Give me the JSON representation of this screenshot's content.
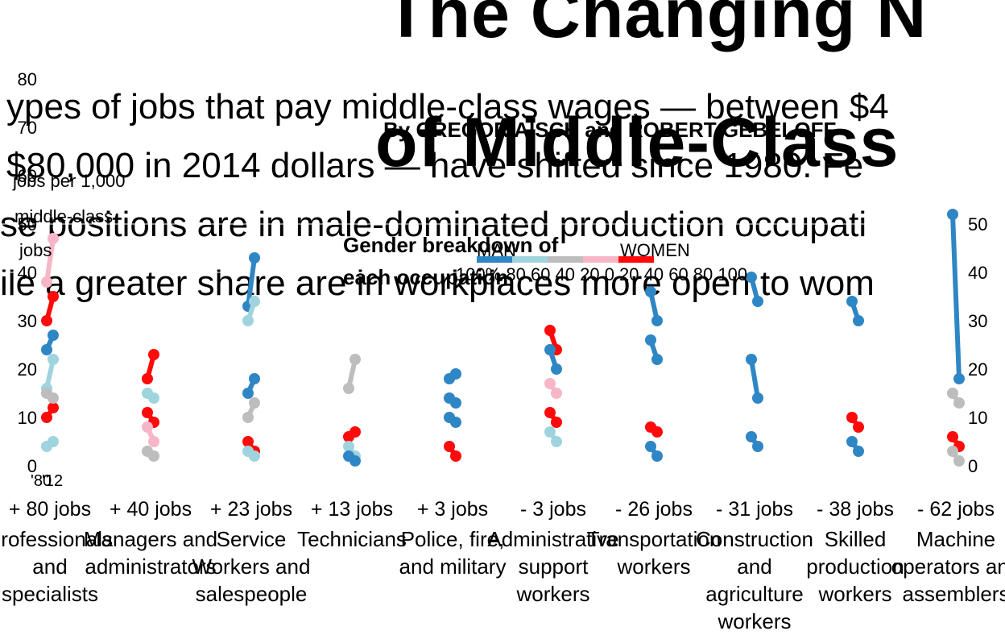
{
  "title": {
    "line1": "The Changing N",
    "line2": "of Middle-Class"
  },
  "subtitle": {
    "line1": "ypes of jobs that pay middle-class wages — between $4",
    "line2": "$80,000 in 2014 dollars — have shifted since 1980. Fe",
    "line3": "se positions are in male-dominated production occupati",
    "line4": "ile a greater share are in workplaces more open to wom"
  },
  "byline": "By GREGOR AISCH and ROBERT GEBELOFF",
  "legend": {
    "title_line1": "Gender breakdown of",
    "title_line2": "each occupation",
    "man": "MAN",
    "women": "WOMEN",
    "scale": "100% 80 60 40 20 0 20 40 60 80 100",
    "colors": [
      "#2f86c4",
      "#9fd4de",
      "#bdbdbd",
      "#f7b6c7",
      "#ff0a0a"
    ]
  },
  "axis": {
    "ylabel_line1": "jobs per 1,000",
    "ylabel_line2": "middle-class",
    "ylabel_line3": "jobs",
    "left_ticks": [
      "0",
      "10",
      "20",
      "30",
      "40",
      "50",
      "60",
      "70",
      "80"
    ],
    "right_ticks": [
      "0",
      "10",
      "20",
      "30",
      "40",
      "50"
    ],
    "year_start": "'80",
    "year_end": "'12"
  },
  "chart_data": {
    "type": "line",
    "title": "The Changing N of Middle-Class",
    "ylabel": "jobs per 1,000 middle-class jobs",
    "x": [
      "'80",
      "'12"
    ],
    "ylim": [
      0,
      60
    ],
    "categories": [
      "Professionals and specialists",
      "Managers and administrators",
      "Service Workers and salespeople",
      "Technicians",
      "Police, fire, and military",
      "Administrative support workers",
      "Transportation workers",
      "Construction and agriculture workers",
      "Skilled production workers",
      "Machine operators and assemblers"
    ],
    "changes": [
      "+ 80 jobs",
      "+ 40 jobs",
      "+ 23 jobs",
      "+ 13 jobs",
      "+ 3 jobs",
      "- 3 jobs",
      "- 26 jobs",
      "- 31 jobs",
      "- 38 jobs",
      "- 62 jobs"
    ],
    "series": [
      {
        "values": [
          38,
          47
        ],
        "color": "#f7b6c7"
      },
      {
        "values": [
          30,
          35
        ],
        "color": "#ff0a0a"
      },
      {
        "values": [
          24,
          27
        ],
        "color": "#2f86c4"
      },
      {
        "values": [
          16,
          22
        ],
        "color": "#9fd4de"
      },
      {
        "values": [
          10,
          12
        ],
        "color": "#ff0a0a"
      },
      {
        "values": [
          15,
          14
        ],
        "color": "#bdbdbd"
      },
      {
        "values": [
          4,
          5
        ],
        "color": "#9fd4de"
      },
      {
        "values": [
          18,
          23
        ],
        "color": "#ff0a0a"
      },
      {
        "values": [
          11,
          9
        ],
        "color": "#ff0a0a"
      },
      {
        "values": [
          15,
          14
        ],
        "color": "#9fd4de"
      },
      {
        "values": [
          8,
          5
        ],
        "color": "#f7b6c7"
      },
      {
        "values": [
          3,
          2
        ],
        "color": "#bdbdbd"
      },
      {
        "values": [
          33,
          43
        ],
        "color": "#2f86c4"
      },
      {
        "values": [
          30,
          34
        ],
        "color": "#9fd4de"
      },
      {
        "values": [
          15,
          18
        ],
        "color": "#2f86c4"
      },
      {
        "values": [
          10,
          13
        ],
        "color": "#bdbdbd"
      },
      {
        "values": [
          5,
          3
        ],
        "color": "#ff0a0a"
      },
      {
        "values": [
          3,
          2
        ],
        "color": "#9fd4de"
      },
      {
        "values": [
          16,
          22
        ],
        "color": "#bdbdbd"
      },
      {
        "values": [
          6,
          7
        ],
        "color": "#ff0a0a"
      },
      {
        "values": [
          4,
          2
        ],
        "color": "#9fd4de"
      },
      {
        "values": [
          2,
          1
        ],
        "color": "#2f86c4"
      },
      {
        "values": [
          18,
          19
        ],
        "color": "#2f86c4"
      },
      {
        "values": [
          14,
          13
        ],
        "color": "#2f86c4"
      },
      {
        "values": [
          10,
          9
        ],
        "color": "#2f86c4"
      },
      {
        "values": [
          4,
          2
        ],
        "color": "#ff0a0a"
      },
      {
        "values": [
          28,
          24
        ],
        "color": "#ff0a0a"
      },
      {
        "values": [
          24,
          20
        ],
        "color": "#2f86c4"
      },
      {
        "values": [
          17,
          15
        ],
        "color": "#f7b6c7"
      },
      {
        "values": [
          11,
          9
        ],
        "color": "#ff0a0a"
      },
      {
        "values": [
          7,
          5
        ],
        "color": "#9fd4de"
      },
      {
        "values": [
          36,
          30
        ],
        "color": "#2f86c4"
      },
      {
        "values": [
          26,
          22
        ],
        "color": "#2f86c4"
      },
      {
        "values": [
          8,
          7
        ],
        "color": "#ff0a0a"
      },
      {
        "values": [
          4,
          2
        ],
        "color": "#2f86c4"
      },
      {
        "values": [
          39,
          34
        ],
        "color": "#2f86c4"
      },
      {
        "values": [
          22,
          14
        ],
        "color": "#2f86c4"
      },
      {
        "values": [
          6,
          4
        ],
        "color": "#2f86c4"
      },
      {
        "values": [
          34,
          30
        ],
        "color": "#2f86c4"
      },
      {
        "values": [
          10,
          8
        ],
        "color": "#ff0a0a"
      },
      {
        "values": [
          5,
          3
        ],
        "color": "#2f86c4"
      },
      {
        "values": [
          52,
          18
        ],
        "color": "#2f86c4"
      },
      {
        "values": [
          15,
          13
        ],
        "color": "#bdbdbd"
      },
      {
        "values": [
          6,
          4
        ],
        "color": "#ff0a0a"
      },
      {
        "values": [
          3,
          1
        ],
        "color": "#bdbdbd"
      }
    ],
    "series_group": [
      0,
      0,
      0,
      0,
      0,
      0,
      0,
      1,
      1,
      1,
      1,
      1,
      2,
      2,
      2,
      2,
      2,
      2,
      3,
      3,
      3,
      3,
      4,
      4,
      4,
      4,
      5,
      5,
      5,
      5,
      5,
      6,
      6,
      6,
      6,
      7,
      7,
      7,
      8,
      8,
      8,
      9,
      9,
      9,
      9
    ]
  }
}
